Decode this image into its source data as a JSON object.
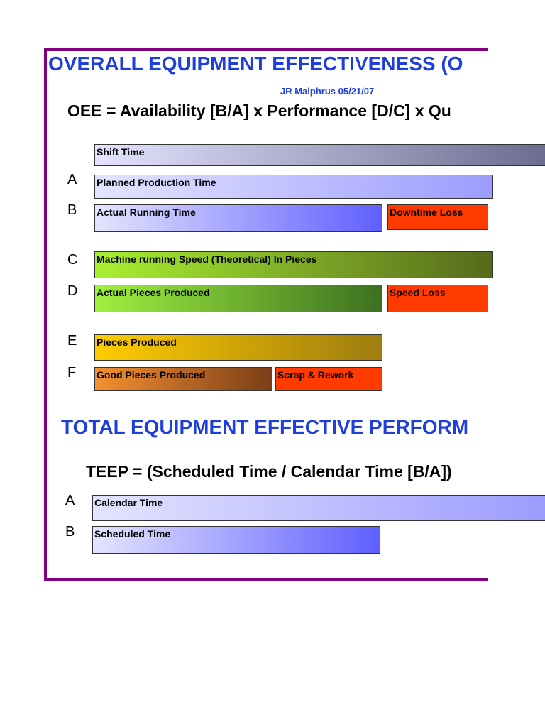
{
  "header": {
    "title": "OVERALL EQUIPMENT EFFECTIVENESS (O",
    "author": "JR Malphrus 05/21/07",
    "formula": "OEE = Availability [B/A] x Performance [D/C] x Qu"
  },
  "oee_rows": [
    {
      "letter": null,
      "bars": [
        {
          "label": "Shift Time"
        }
      ]
    },
    {
      "letter": "A",
      "bars": [
        {
          "label": "Planned Production Time"
        }
      ]
    },
    {
      "letter": "B",
      "bars": [
        {
          "label": "Actual Running Time"
        },
        {
          "label": "Downtime Loss"
        }
      ]
    },
    {
      "letter": "C",
      "bars": [
        {
          "label": "Machine running Speed (Theoretical) In Pieces"
        }
      ]
    },
    {
      "letter": "D",
      "bars": [
        {
          "label": "Actual Pieces Produced"
        },
        {
          "label": "Speed Loss"
        }
      ]
    },
    {
      "letter": "E",
      "bars": [
        {
          "label": "Pieces Produced"
        }
      ]
    },
    {
      "letter": "F",
      "bars": [
        {
          "label": "Good Pieces Produced"
        },
        {
          "label": "Scrap & Rework"
        }
      ]
    }
  ],
  "teep": {
    "title": "TOTAL EQUIPMENT EFFECTIVE PERFORM",
    "formula": "TEEP = (Scheduled Time / Calendar Time [B/A])",
    "rows": [
      {
        "letter": "A",
        "bars": [
          {
            "label": "Calendar Time"
          }
        ]
      },
      {
        "letter": "B",
        "bars": [
          {
            "label": "Scheduled Time"
          }
        ]
      }
    ]
  }
}
